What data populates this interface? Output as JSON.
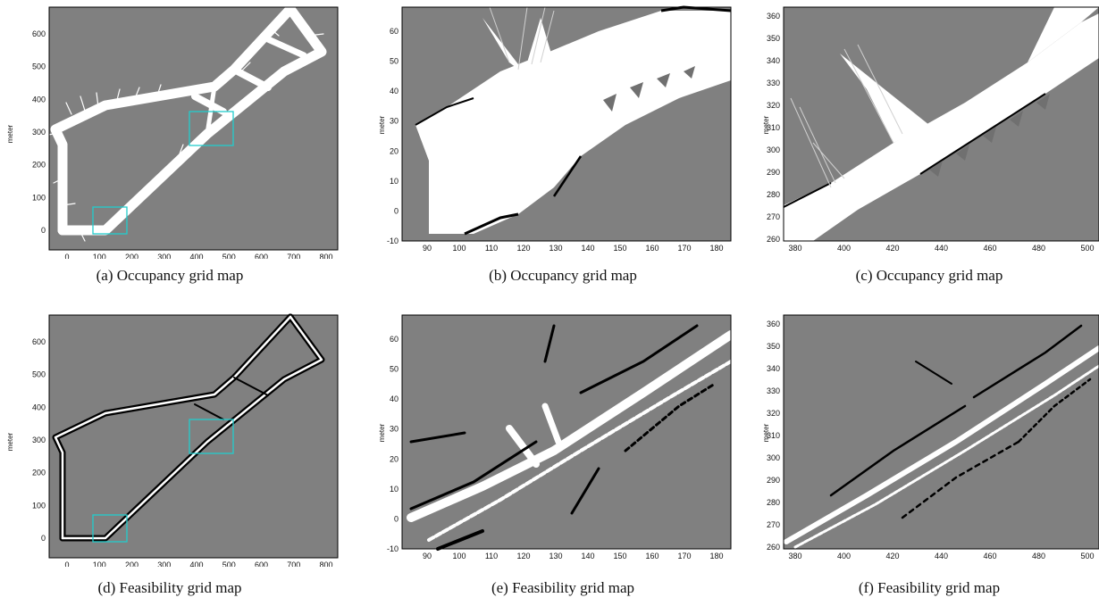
{
  "colors": {
    "map_bg": "#808080",
    "free": "#ffffff",
    "obstacle": "#000000",
    "highlight": "#22cccc"
  },
  "panels": [
    {
      "caption": "(a) Occupancy grid map",
      "ylabel": "meter",
      "xticks": [
        "0",
        "100",
        "200",
        "300",
        "400",
        "500",
        "600",
        "700",
        "800"
      ],
      "yticks": [
        "0",
        "100",
        "200",
        "300",
        "400",
        "500",
        "600"
      ]
    },
    {
      "caption": "(b) Occupancy grid map",
      "ylabel": "meter",
      "xticks": [
        "90",
        "100",
        "110",
        "120",
        "130",
        "140",
        "150",
        "160",
        "170",
        "180"
      ],
      "yticks": [
        "-10",
        "0",
        "10",
        "20",
        "30",
        "40",
        "50",
        "60"
      ]
    },
    {
      "caption": "(c) Occupancy grid map",
      "ylabel": "meter",
      "xticks": [
        "380",
        "400",
        "420",
        "440",
        "460",
        "480",
        "500"
      ],
      "yticks": [
        "260",
        "270",
        "280",
        "290",
        "300",
        "310",
        "320",
        "330",
        "340",
        "350",
        "360"
      ]
    },
    {
      "caption": "(d) Feasibility grid map",
      "ylabel": "meter",
      "xticks": [
        "0",
        "100",
        "200",
        "300",
        "400",
        "500",
        "600",
        "700",
        "800"
      ],
      "yticks": [
        "0",
        "100",
        "200",
        "300",
        "400",
        "500",
        "600"
      ]
    },
    {
      "caption": "(e) Feasibility grid map",
      "ylabel": "meter",
      "xticks": [
        "90",
        "100",
        "110",
        "120",
        "130",
        "140",
        "150",
        "160",
        "170",
        "180"
      ],
      "yticks": [
        "-10",
        "0",
        "10",
        "20",
        "30",
        "40",
        "50",
        "60"
      ]
    },
    {
      "caption": "(f) Feasibility grid map",
      "ylabel": "meter",
      "xticks": [
        "380",
        "400",
        "420",
        "440",
        "460",
        "480",
        "500"
      ],
      "yticks": [
        "260",
        "270",
        "280",
        "290",
        "300",
        "310",
        "320",
        "330",
        "340",
        "350",
        "360"
      ]
    }
  ]
}
